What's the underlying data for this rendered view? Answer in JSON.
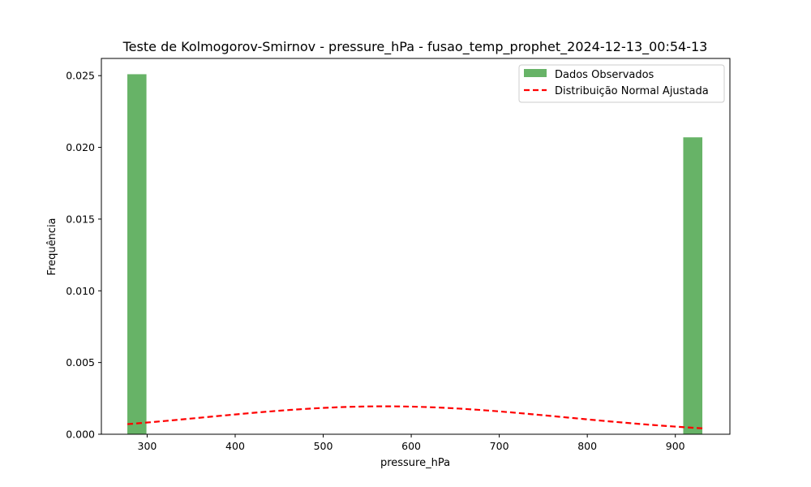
{
  "chart_data": {
    "type": "bar",
    "title": "Teste de Kolmogorov-Smirnov - pressure_hPa - fusao_temp_prophet_2024-12-13_00:54-13",
    "xlabel": "pressure_hPa",
    "ylabel": "Frequência",
    "xlim": [
      248,
      962
    ],
    "ylim": [
      0,
      0.0262
    ],
    "xticks": [
      300,
      400,
      500,
      600,
      700,
      800,
      900
    ],
    "yticks": [
      0.0,
      0.005,
      0.01,
      0.015,
      0.02,
      0.025
    ],
    "ytick_labels": [
      "0.000",
      "0.005",
      "0.010",
      "0.015",
      "0.020",
      "0.025"
    ],
    "grid": false,
    "legend_position": "top-right",
    "series": [
      {
        "name": "Dados Observados",
        "kind": "histogram",
        "color": "#4ca64c",
        "opacity": 0.85,
        "bins": [
          {
            "x0": 277.5,
            "x1": 299.2,
            "value": 0.0251
          },
          {
            "x0": 909.0,
            "x1": 930.7,
            "value": 0.0207
          }
        ]
      },
      {
        "name": "Distribuição Normal Ajustada",
        "kind": "line",
        "color": "#ff0000",
        "dashed": true,
        "mean": 570,
        "std": 205,
        "x_range": [
          277.5,
          930.7
        ]
      }
    ]
  }
}
